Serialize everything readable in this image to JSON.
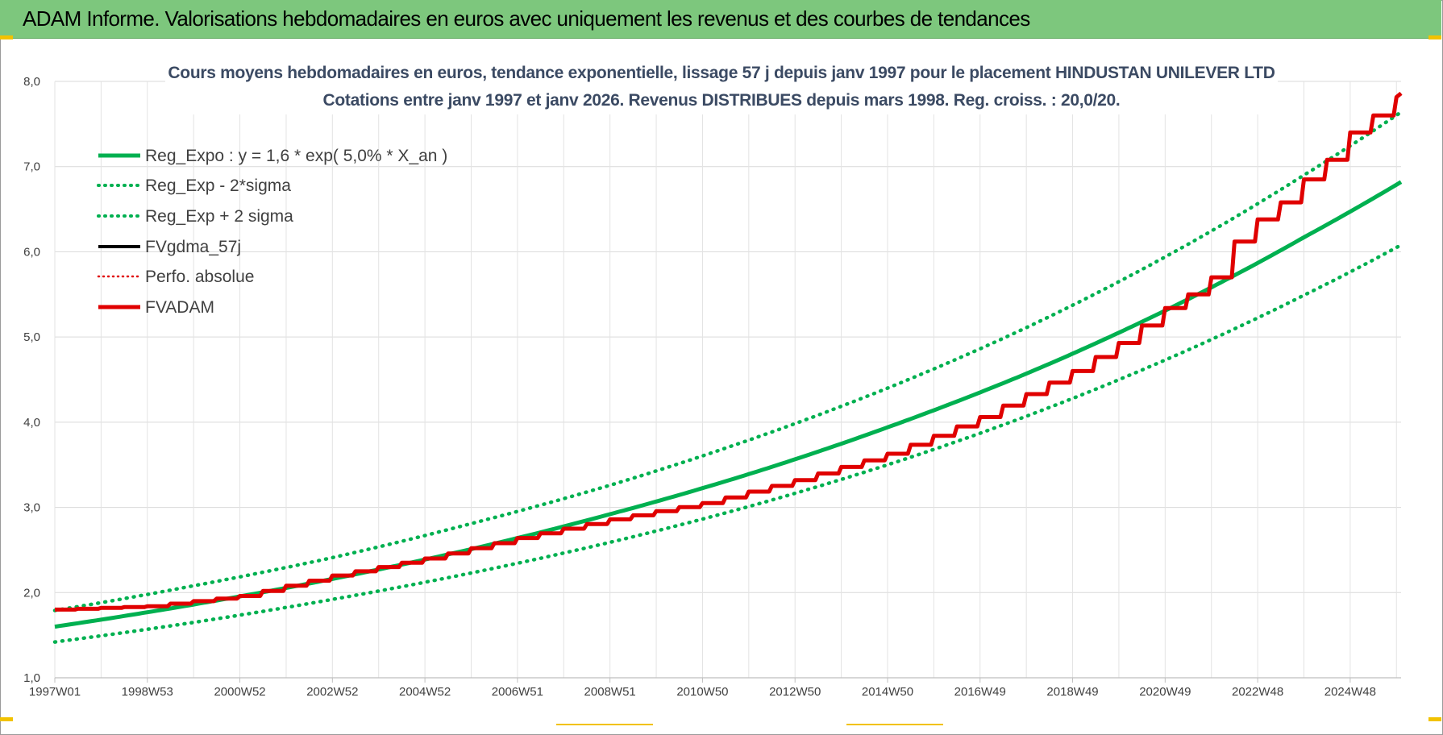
{
  "header": {
    "title": "ADAM Informe. Valorisations hebdomadaires en euros avec uniquement les revenus et des courbes de tendances"
  },
  "chart_data": {
    "type": "line",
    "title": "Cours moyens hebdomadaires en euros, tendance exponentielle, lissage 57 j depuis janv 1997 pour le placement HINDUSTAN UNILEVER LTD",
    "subtitle": "Cotations entre janv 1997 et janv 2026. Revenus DISTRIBUES depuis mars 1998. Reg. croiss. : 20,0/20.",
    "xlabel": "",
    "ylabel": "",
    "ylim": [
      1.0,
      8.0
    ],
    "xlim": [
      1997.0,
      2026.1
    ],
    "y_ticks": [
      "1,0",
      "2,0",
      "3,0",
      "4,0",
      "5,0",
      "6,0",
      "7,0",
      "8,0"
    ],
    "x_ticks": [
      {
        "label": "1997W01",
        "x": 1997.0
      },
      {
        "label": "1998W53",
        "x": 1999.0
      },
      {
        "label": "2000W52",
        "x": 2001.0
      },
      {
        "label": "2002W52",
        "x": 2003.0
      },
      {
        "label": "2004W52",
        "x": 2005.0
      },
      {
        "label": "2006W51",
        "x": 2007.0
      },
      {
        "label": "2008W51",
        "x": 2009.0
      },
      {
        "label": "2010W50",
        "x": 2011.0
      },
      {
        "label": "2012W50",
        "x": 2013.0
      },
      {
        "label": "2014W50",
        "x": 2015.0
      },
      {
        "label": "2016W49",
        "x": 2017.0
      },
      {
        "label": "2018W49",
        "x": 2019.0
      },
      {
        "label": "2020W49",
        "x": 2021.0
      },
      {
        "label": "2022W48",
        "x": 2023.0
      },
      {
        "label": "2024W48",
        "x": 2025.0
      }
    ],
    "grid": true,
    "legend_position": "top-left",
    "series": [
      {
        "name": "Reg_Expo : y = 1,6 * exp( 5,0% * X_an )",
        "color": "#00b050",
        "style": "solid",
        "x": [
          1997.0,
          2000.0,
          2003.0,
          2006.0,
          2009.0,
          2012.0,
          2015.0,
          2018.0,
          2021.0,
          2024.0,
          2026.1
        ],
        "values": [
          1.6,
          1.86,
          2.16,
          2.51,
          2.92,
          3.39,
          3.94,
          4.57,
          5.31,
          6.17,
          6.82
        ]
      },
      {
        "name": "Reg_Exp - 2*sigma",
        "color": "#00b050",
        "style": "dotted",
        "x": [
          1997.0,
          2000.0,
          2003.0,
          2006.0,
          2009.0,
          2012.0,
          2015.0,
          2018.0,
          2021.0,
          2024.0,
          2026.1
        ],
        "values": [
          1.42,
          1.65,
          1.92,
          2.23,
          2.59,
          3.01,
          3.5,
          4.07,
          4.73,
          5.49,
          6.08
        ]
      },
      {
        "name": "Reg_Exp + 2 sigma",
        "color": "#00b050",
        "style": "dotted",
        "x": [
          1997.0,
          2000.0,
          2003.0,
          2006.0,
          2009.0,
          2012.0,
          2015.0,
          2018.0,
          2021.0,
          2024.0,
          2026.1
        ],
        "values": [
          1.79,
          2.08,
          2.41,
          2.81,
          3.26,
          3.79,
          4.4,
          5.11,
          5.94,
          6.9,
          7.64
        ]
      },
      {
        "name": "FVgdma_57j",
        "color": "#000000",
        "style": "solid",
        "x": [
          1997.0,
          1999.0,
          2001.0,
          2003.0,
          2005.0,
          2007.0,
          2009.0,
          2011.0,
          2013.0,
          2015.0,
          2016.0,
          2017.0,
          2018.0,
          2019.0,
          2020.0,
          2021.0,
          2021.5,
          2022.0,
          2022.5,
          2023.0,
          2023.5,
          2024.0,
          2024.5,
          2025.0,
          2025.5,
          2026.1
        ],
        "values": [
          1.8,
          1.84,
          1.96,
          2.2,
          2.4,
          2.64,
          2.86,
          3.05,
          3.32,
          3.63,
          3.84,
          4.06,
          4.33,
          4.6,
          4.93,
          5.34,
          5.5,
          5.7,
          6.12,
          6.38,
          6.58,
          6.85,
          7.08,
          7.4,
          7.6,
          7.86
        ]
      },
      {
        "name": "Perfo. absolue",
        "color": "#e00000",
        "style": "dotted",
        "x": [],
        "values": []
      },
      {
        "name": "FVADAM",
        "color": "#e00000",
        "style": "solid-thick",
        "x": [
          1997.0,
          1999.0,
          2001.0,
          2003.0,
          2005.0,
          2007.0,
          2009.0,
          2011.0,
          2013.0,
          2015.0,
          2016.0,
          2017.0,
          2018.0,
          2019.0,
          2020.0,
          2021.0,
          2021.5,
          2022.0,
          2022.5,
          2023.0,
          2023.5,
          2024.0,
          2024.5,
          2025.0,
          2025.5,
          2026.1
        ],
        "values": [
          1.8,
          1.84,
          1.96,
          2.2,
          2.4,
          2.64,
          2.86,
          3.05,
          3.32,
          3.63,
          3.84,
          4.06,
          4.33,
          4.6,
          4.93,
          5.34,
          5.5,
          5.7,
          6.12,
          6.38,
          6.58,
          6.85,
          7.08,
          7.4,
          7.6,
          7.86
        ]
      }
    ]
  }
}
